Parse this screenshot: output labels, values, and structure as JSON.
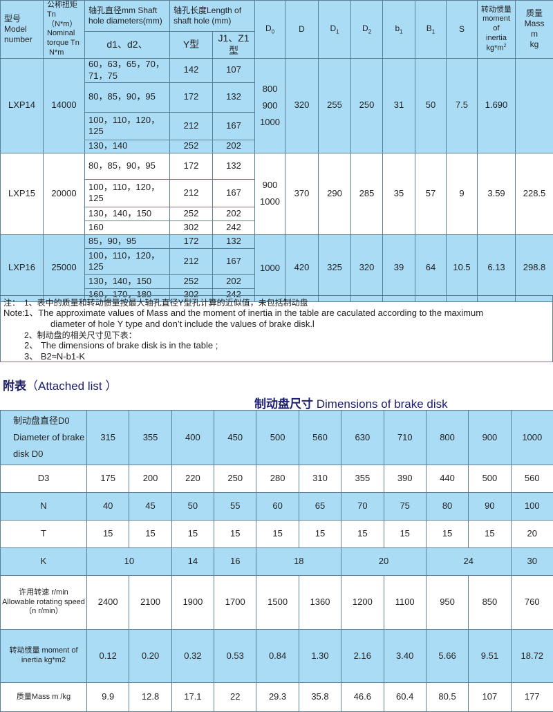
{
  "main_table": {
    "headers": {
      "model": "型号 Model number",
      "torque": "公称扭矩 Tn（N*m） Nominal torque Tn N*m",
      "shaft_diam": "轴孔直径mm Shaft hole diameters(mm)",
      "shaft_len": "轴孔长度Length of shaft hole (mm)",
      "d12": "d1、d2、",
      "y": "Y型",
      "jz": "J1、Z1型",
      "D0": "D0",
      "D": "D",
      "D1": "D1",
      "D2": "D2",
      "b1": "b1",
      "B1": "B1",
      "S": "S",
      "inertia": "转动惯量 moment of inertia kg*m2",
      "mass": "质量 Mass m kg"
    },
    "models": [
      {
        "model": "LXP14",
        "torque": "14000",
        "rows": [
          {
            "d": "60，63，65，70，71，75",
            "y": "142",
            "j": "107"
          },
          {
            "d": "80，85，90，95",
            "y": "172",
            "j": "132"
          },
          {
            "d": "100，110，120，125",
            "y": "212",
            "j": "167"
          },
          {
            "d": "130，140",
            "y": "252",
            "j": "202"
          }
        ],
        "D0": [
          "800",
          "900",
          "1000"
        ],
        "D": "320",
        "D1": "255",
        "D2": "250",
        "b1": "31",
        "B1": "50",
        "S": "7.5",
        "inertia": "1.690",
        "mass": "",
        "row_color": "blue"
      },
      {
        "model": "LXP15",
        "torque": "20000",
        "rows": [
          {
            "d": "80，85，90，95",
            "y": "172",
            "j": "132"
          },
          {
            "d": "100，110，120，125",
            "y": "212",
            "j": "167"
          },
          {
            "d": "130，140，150",
            "y": "252",
            "j": "202"
          },
          {
            "d": "160",
            "y": "302",
            "j": "242"
          }
        ],
        "D0": [
          "900",
          "1000"
        ],
        "D": "370",
        "D1": "290",
        "D2": "285",
        "b1": "35",
        "B1": "57",
        "S": "9",
        "inertia": "3.59",
        "mass": "228.5",
        "row_color": "white"
      },
      {
        "model": "LXP16",
        "torque": "25000",
        "rows": [
          {
            "d": "85，90，95",
            "y": "172",
            "j": "132"
          },
          {
            "d": "100，110，120，125",
            "y": "212",
            "j": "167"
          },
          {
            "d": "130，140，150",
            "y": "252",
            "j": "202"
          },
          {
            "d": "160，170，180",
            "y": "302",
            "j": "242"
          }
        ],
        "D0": [
          "1000"
        ],
        "D": "420",
        "D1": "325",
        "D2": "320",
        "b1": "39",
        "B1": "64",
        "S": "10.5",
        "inertia": "6.13",
        "mass": "298.8",
        "row_color": "blue"
      }
    ]
  },
  "notes": {
    "zh_label": "注：",
    "en_label": "Note:",
    "n1_zh": "1、表中的质量和转动惯量按最大轴孔直径Y型孔计算的近似值，未包括制动盘",
    "n1_en_a": "1、The approximate values of Mass and the moment of inertia in the table are caculated according to the maximum",
    "n1_en_b": "diameter of hole Y type and don’t include the values of brake disk.l",
    "n2_zh": "2、制动盘的相关尺寸见下表：",
    "n2_en": "2、 The dimensions of brake disk is in the table ;",
    "n3": "3、 B2≈N-b1-K"
  },
  "attached": {
    "title_zh": "附表",
    "title_en": "（Attached list ）",
    "subtitle_zh": "制动盘尺寸",
    "subtitle_en": "Dimensions of brake disk"
  },
  "brake_table": {
    "rows": [
      {
        "label": "制动盘直径D0 Diameter of brake disk D0",
        "values": [
          "315",
          "355",
          "400",
          "450",
          "500",
          "560",
          "630",
          "710",
          "800",
          "900",
          "1000"
        ],
        "color": "blue"
      },
      {
        "label": "D3",
        "values": [
          "175",
          "200",
          "220",
          "250",
          "280",
          "310",
          "355",
          "390",
          "440",
          "500",
          "560"
        ],
        "color": "white"
      },
      {
        "label": "N",
        "values": [
          "40",
          "45",
          "50",
          "55",
          "60",
          "65",
          "70",
          "75",
          "80",
          "90",
          "100"
        ],
        "color": "blue"
      },
      {
        "label": "T",
        "values": [
          "15",
          "15",
          "15",
          "15",
          "15",
          "15",
          "15",
          "15",
          "15",
          "15",
          "20"
        ],
        "color": "white"
      },
      {
        "label": "K",
        "values": [
          "10",
          "14",
          "16",
          "18",
          "20",
          "24",
          "30"
        ],
        "spans": [
          2,
          1,
          1,
          2,
          2,
          2,
          1
        ],
        "color": "blue"
      },
      {
        "label": "许用转速 r/min Allowable rotating speed（n r/min）",
        "values": [
          "2400",
          "2100",
          "1900",
          "1700",
          "1500",
          "1360",
          "1200",
          "1100",
          "950",
          "850",
          "760"
        ],
        "color": "white"
      },
      {
        "label": "转动惯量 moment of inertia kg*m2",
        "values": [
          "0.12",
          "0.20",
          "0.32",
          "0.53",
          "0.84",
          "1.30",
          "2.16",
          "3.40",
          "5.66",
          "9.51",
          "18.72"
        ],
        "color": "blue"
      },
      {
        "label": "质量Mass m /kg",
        "values": [
          "9.9",
          "12.8",
          "17.1",
          "22",
          "29.3",
          "35.8",
          "46.6",
          "60.4",
          "80.5",
          "107",
          "177"
        ],
        "color": "white"
      }
    ]
  }
}
